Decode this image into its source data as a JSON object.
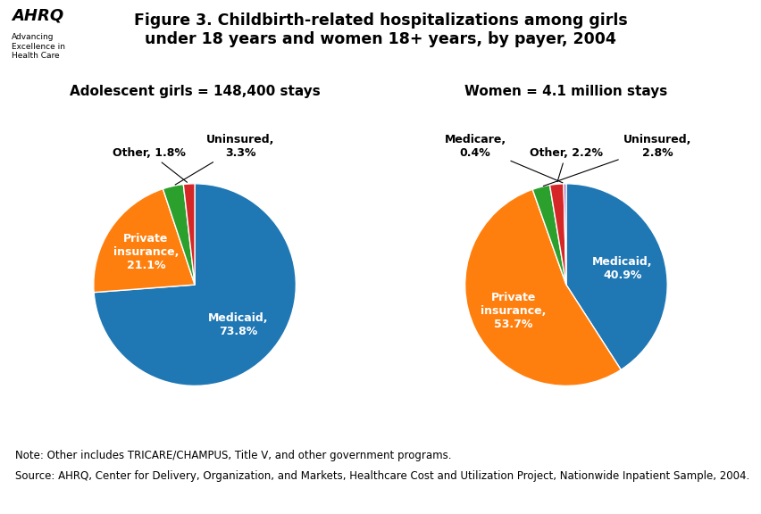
{
  "title": "Figure 3. Childbirth-related hospitalizations among girls\nunder 18 years and women 18+ years, by payer, 2004",
  "annotations": [
    "AHRQ",
    "Advancing\nExcellence in\nHealth Care",
    "Note: Other includes TRICARE/CHAMPUS, Title V, and other government programs.",
    "Source: AHRQ, Center for Delivery, Organization, and Markets, Healthcare Cost and Utilization Project, Nationwide Inpatient Sample, 2004."
  ],
  "chart_data": [
    {
      "type": "pie",
      "title": "Adolescent girls = 148,400 stays",
      "categories": [
        "Medicaid",
        "Private insurance",
        "Uninsured",
        "Other"
      ],
      "values": [
        73.8,
        21.1,
        3.3,
        1.8
      ],
      "value_labels": [
        "Medicaid,\n73.8%",
        "Private\ninsurance,\n21.1%",
        "Uninsured,\n3.3%",
        "Other, 1.8%"
      ],
      "data_labels": true
    },
    {
      "type": "pie",
      "title": "Women = 4.1 million stays",
      "categories": [
        "Medicaid",
        "Private insurance",
        "Uninsured",
        "Other",
        "Medicare"
      ],
      "values": [
        40.9,
        53.7,
        2.8,
        2.2,
        0.4
      ],
      "value_labels": [
        "Medicaid,\n40.9%",
        "Private\ninsurance,\n53.7%",
        "Uninsured,\n2.8%",
        "Other, 2.2%",
        "Medicare,\n0.4%"
      ],
      "data_labels": true
    }
  ]
}
